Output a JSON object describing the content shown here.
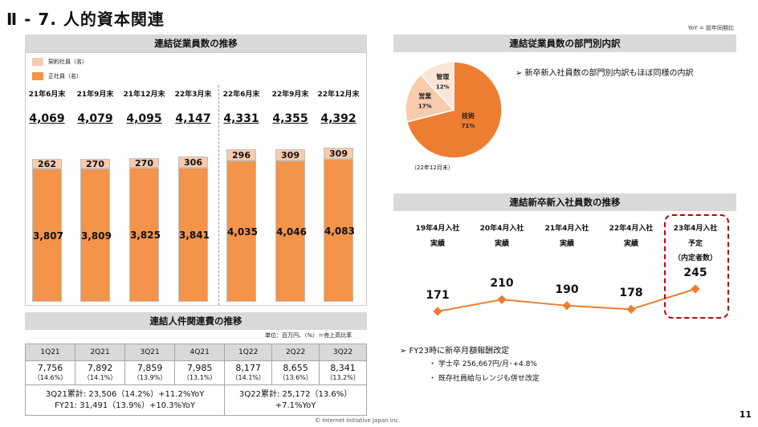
{
  "title": "Ⅱ - 7.  人的資本関連",
  "yoy_note": "YoY = 前年同期比",
  "headcount": {
    "header": "連結従業員数の推移",
    "legend": {
      "contract": "契約社員（名）",
      "regular": "正社員（名）"
    },
    "colors": {
      "contract": "#f8cbad",
      "regular": "#f4934a"
    },
    "periods": [
      {
        "label": "21年6月末",
        "total": "4,069",
        "contract": "262",
        "regular": "3,807",
        "contract_val": 262,
        "regular_val": 3807
      },
      {
        "label": "21年9月末",
        "total": "4,079",
        "contract": "270",
        "regular": "3,809",
        "contract_val": 270,
        "regular_val": 3809
      },
      {
        "label": "21年12月末",
        "total": "4,095",
        "contract": "270",
        "regular": "3,825",
        "contract_val": 270,
        "regular_val": 3825
      },
      {
        "label": "22年3月末",
        "total": "4,147",
        "contract": "306",
        "regular": "3,841",
        "contract_val": 306,
        "regular_val": 3841
      },
      {
        "label": "22年6月末",
        "total": "4,331",
        "contract": "296",
        "regular": "4,035",
        "contract_val": 296,
        "regular_val": 4035
      },
      {
        "label": "22年9月末",
        "total": "4,355",
        "contract": "309",
        "regular": "4,046",
        "contract_val": 309,
        "regular_val": 4046
      },
      {
        "label": "22年12月末",
        "total": "4,392",
        "contract": "309",
        "regular": "4,083",
        "contract_val": 309,
        "regular_val": 4083
      }
    ]
  },
  "personnel_cost": {
    "header": "連結人件関連費の推移",
    "unit_note": "単位：百万円、（%）＝売上高比率",
    "quarters": [
      "1Q21",
      "2Q21",
      "3Q21",
      "4Q21",
      "1Q22",
      "2Q22",
      "3Q22"
    ],
    "values": [
      "7,756",
      "7,892",
      "7,859",
      "7,985",
      "8,177",
      "8,655",
      "8,341"
    ],
    "ratios": [
      "（14.6%）",
      "（14.1%）",
      "（13.9%）",
      "（13.1%）",
      "（14.1%）",
      "（13.6%）",
      "（13.2%）"
    ],
    "summary_left_1": "3Q21累計: 23,506（14.2%）+11.2%YoY",
    "summary_left_2": "FY21: 31,491（13.9%）+10.3%YoY",
    "summary_right_1": "3Q22累計: 25,172（13.6%）",
    "summary_right_2": "+7.1%YoY"
  },
  "department": {
    "header": "連結従業員数の部門別内訳",
    "slices": [
      {
        "name": "技術",
        "pct": "71%",
        "value": 71,
        "color": "#ed7d31"
      },
      {
        "name": "営業",
        "pct": "17%",
        "value": 17,
        "color": "#f8cbad"
      },
      {
        "name": "管理",
        "pct": "12%",
        "value": 12,
        "color": "#fbe5d6"
      }
    ],
    "note": "（22年12月末）",
    "bullet": "➢  新卒新入社員数の部門別内訳もほぼ同様の内訳"
  },
  "new_grads": {
    "header": "連結新卒新入社員数の推移",
    "line_color": "#ed7d31",
    "highlight_color": "#c00000",
    "periods": [
      {
        "line1": "19年4月入社",
        "line2": "実績",
        "line3": "",
        "value_label": "171",
        "value": 171
      },
      {
        "line1": "20年4月入社",
        "line2": "実績",
        "line3": "",
        "value_label": "210",
        "value": 210
      },
      {
        "line1": "21年4月入社",
        "line2": "実績",
        "line3": "",
        "value_label": "190",
        "value": 190
      },
      {
        "line1": "22年4月入社",
        "line2": "実績",
        "line3": "",
        "value_label": "178",
        "value": 178
      },
      {
        "line1": "23年4月入社",
        "line2": "予定",
        "line3": "（内定者数）",
        "value_label": "245",
        "value": 245
      }
    ],
    "notes": [
      "➢  FY23時に新卒月額報酬改定",
      "・  学士卒 256,667円/月･+4.8%",
      "・  既存社員給与レンジも併せ改定"
    ]
  },
  "footer": {
    "copyright": "© Internet Initiative Japan Inc.",
    "page": "11"
  },
  "chart_data": [
    {
      "type": "bar",
      "title": "連結従業員数の推移",
      "categories": [
        "21年6月末",
        "21年9月末",
        "21年12月末",
        "22年3月末",
        "22年6月末",
        "22年9月末",
        "22年12月末"
      ],
      "series": [
        {
          "name": "正社員（名）",
          "values": [
            3807,
            3809,
            3825,
            3841,
            4035,
            4046,
            4083
          ]
        },
        {
          "name": "契約社員（名）",
          "values": [
            262,
            270,
            270,
            306,
            296,
            309,
            309
          ]
        }
      ],
      "totals": [
        4069,
        4079,
        4095,
        4147,
        4331,
        4355,
        4392
      ],
      "stacked": true
    },
    {
      "type": "pie",
      "title": "連結従業員数の部門別内訳",
      "categories": [
        "技術",
        "営業",
        "管理"
      ],
      "values": [
        71,
        17,
        12
      ]
    },
    {
      "type": "line",
      "title": "連結新卒新入社員数の推移",
      "categories": [
        "19年4月入社",
        "20年4月入社",
        "21年4月入社",
        "22年4月入社",
        "23年4月入社"
      ],
      "values": [
        171,
        210,
        190,
        178,
        245
      ]
    }
  ]
}
